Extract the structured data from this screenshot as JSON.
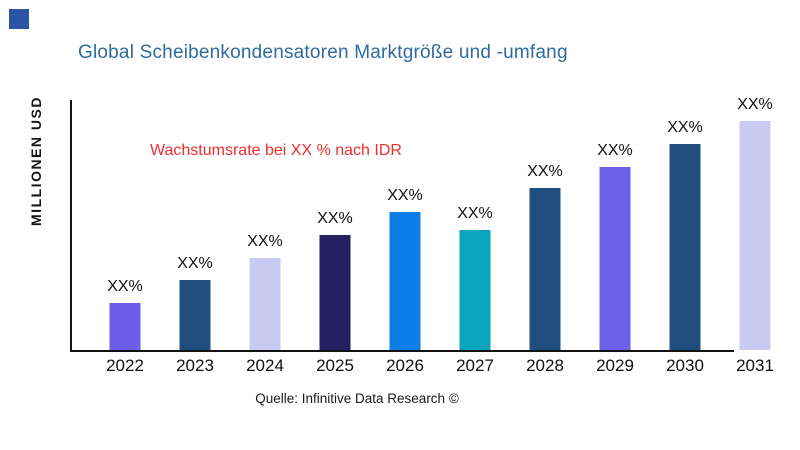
{
  "header": {
    "title": "Global Scheibenkondensatoren Marktgröße und -umfang"
  },
  "annotation": {
    "text": "Wachstumsrate bei XX % nach IDR"
  },
  "source": {
    "text": "Quelle: Infinitive Data Research ©"
  },
  "colors": {
    "title": "#2E6B9E",
    "annotation": "#ED2E2E",
    "axis": "#111111",
    "logo": "#2A55A4"
  },
  "chart_data": {
    "type": "bar",
    "title": "Global Scheibenkondensatoren Marktgröße und -umfang",
    "ylabel": "MILLIONEN USD",
    "xlabel": "",
    "categories": [
      "2022",
      "2023",
      "2024",
      "2025",
      "2026",
      "2027",
      "2028",
      "2029",
      "2030",
      "2031"
    ],
    "bar_value_labels": [
      "XX%",
      "XX%",
      "XX%",
      "XX%",
      "XX%",
      "XX%",
      "XX%",
      "XX%",
      "XX%",
      "XX%"
    ],
    "values": [
      47,
      70,
      92,
      115,
      138,
      120,
      162,
      183,
      206,
      229
    ],
    "values_unit": "relative bar height in pixels; numeric data labels are masked as XX% in the source chart",
    "bar_colors": [
      "#6C5CE7",
      "#1F4E7F",
      "#C8CAF1",
      "#262062",
      "#0D7DE8",
      "#0BA6BE",
      "#1F4E7F",
      "#6C5FE8",
      "#1F4E7F",
      "#C8CAF1"
    ],
    "annotation": "Wachstumsrate bei XX % nach IDR",
    "source": "Quelle: Infinitive Data Research ©",
    "grid": false,
    "legend": false
  }
}
